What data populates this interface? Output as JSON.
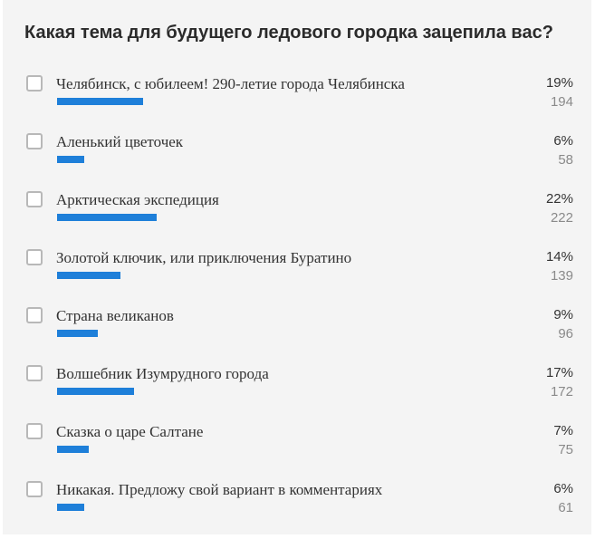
{
  "poll": {
    "question": "Какая тема для будущего ледового городка зацепила вас?",
    "bar_color": "#1e7fd9",
    "options": [
      {
        "label": "Челябинск, с юбилеем! 290-летие города Челябинска",
        "percent": "19%",
        "count": "194",
        "share": 19
      },
      {
        "label": "Аленький цветочек",
        "percent": "6%",
        "count": "58",
        "share": 6
      },
      {
        "label": "Арктическая экспедиция",
        "percent": "22%",
        "count": "222",
        "share": 22
      },
      {
        "label": "Золотой ключик, или приключения Буратино",
        "percent": "14%",
        "count": "139",
        "share": 14
      },
      {
        "label": "Страна великанов",
        "percent": "9%",
        "count": "96",
        "share": 9
      },
      {
        "label": "Волшебник Изумрудного города",
        "percent": "17%",
        "count": "172",
        "share": 17
      },
      {
        "label": "Сказка о царе Салтане",
        "percent": "7%",
        "count": "75",
        "share": 7
      },
      {
        "label": "Никакая. Предложу свой вариант в комментариях",
        "percent": "6%",
        "count": "61",
        "share": 6
      }
    ]
  }
}
